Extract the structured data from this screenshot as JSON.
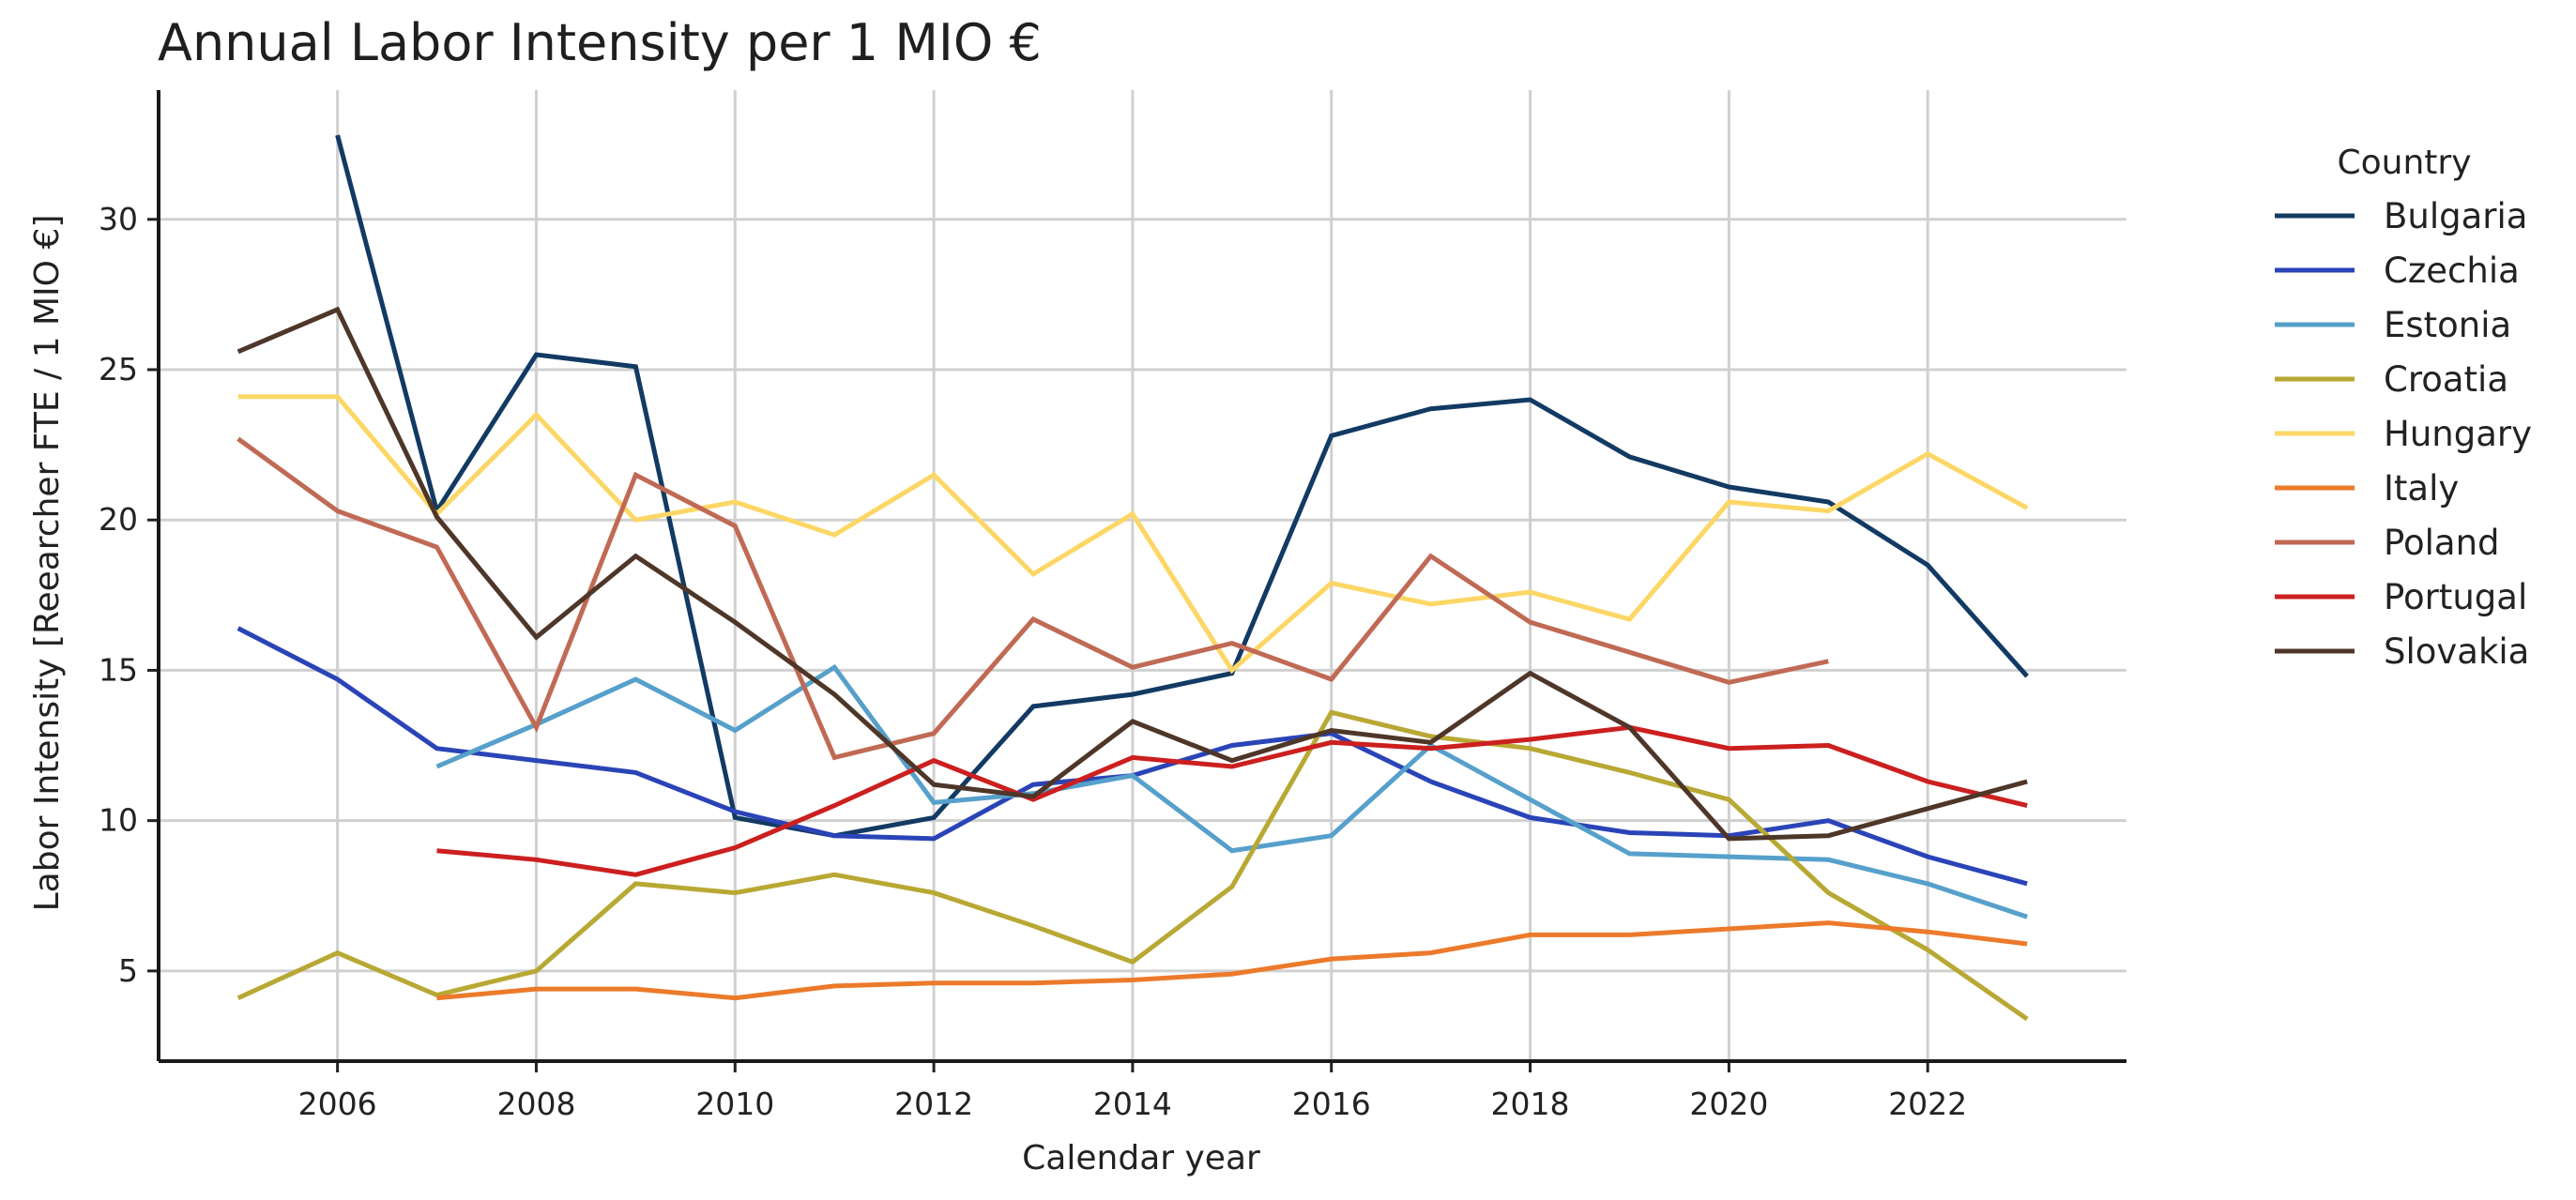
{
  "chart_data": {
    "type": "line",
    "title": "Annual Labor Intensity per 1 MIO €",
    "xlabel": "Calendar year",
    "ylabel": "Labor Intensity [Reearcher FTE / 1 MIO €]",
    "xlim": [
      2004.2,
      2024.0
    ],
    "ylim": [
      2.0,
      34.3
    ],
    "x_ticks": [
      2006,
      2008,
      2010,
      2012,
      2014,
      2016,
      2018,
      2020,
      2022
    ],
    "y_ticks": [
      5,
      10,
      15,
      20,
      25,
      30
    ],
    "grid": true,
    "legend": {
      "title": "Country",
      "position": "right"
    },
    "series": [
      {
        "name": "Bulgaria",
        "color": "#123a63",
        "x": [
          2006,
          2007,
          2008,
          2009,
          2010,
          2011,
          2012,
          2013,
          2014,
          2015,
          2016,
          2017,
          2018,
          2019,
          2020,
          2021,
          2022,
          2023
        ],
        "y": [
          32.8,
          20.3,
          25.5,
          25.1,
          10.1,
          9.5,
          10.1,
          13.8,
          14.2,
          14.9,
          22.8,
          23.7,
          24.0,
          22.1,
          21.1,
          20.6,
          18.5,
          14.8
        ]
      },
      {
        "name": "Czechia",
        "color": "#2a44b8",
        "x": [
          2005,
          2006,
          2007,
          2008,
          2009,
          2010,
          2011,
          2012,
          2013,
          2014,
          2015,
          2016,
          2017,
          2018,
          2019,
          2020,
          2021,
          2022,
          2023
        ],
        "y": [
          16.4,
          14.7,
          12.4,
          12.0,
          11.6,
          10.3,
          9.5,
          9.4,
          11.2,
          11.5,
          12.5,
          12.9,
          11.3,
          10.1,
          9.6,
          9.5,
          10.0,
          8.8,
          7.9
        ]
      },
      {
        "name": "Estonia",
        "color": "#56a0cb",
        "x": [
          2007,
          2008,
          2009,
          2010,
          2011,
          2012,
          2013,
          2014,
          2015,
          2016,
          2017,
          2018,
          2019,
          2020,
          2021,
          2022,
          2023
        ],
        "y": [
          11.8,
          13.2,
          14.7,
          13.0,
          15.1,
          10.6,
          10.9,
          11.5,
          9.0,
          9.5,
          12.5,
          10.7,
          8.9,
          8.8,
          8.7,
          7.9,
          6.8
        ]
      },
      {
        "name": "Croatia",
        "color": "#b8a834",
        "x": [
          2005,
          2006,
          2007,
          2008,
          2009,
          2010,
          2011,
          2012,
          2013,
          2014,
          2015,
          2016,
          2017,
          2018,
          2019,
          2020,
          2021,
          2022,
          2023
        ],
        "y": [
          4.1,
          5.6,
          4.2,
          5.0,
          7.9,
          7.6,
          8.2,
          7.6,
          6.5,
          5.3,
          7.8,
          13.6,
          12.8,
          12.4,
          11.6,
          10.7,
          7.6,
          5.7,
          3.4
        ]
      },
      {
        "name": "Hungary",
        "color": "#fcd766",
        "x": [
          2005,
          2006,
          2007,
          2008,
          2009,
          2010,
          2011,
          2012,
          2013,
          2014,
          2015,
          2016,
          2017,
          2018,
          2019,
          2020,
          2021,
          2022,
          2023
        ],
        "y": [
          24.1,
          24.1,
          20.2,
          23.5,
          20.0,
          20.6,
          19.5,
          21.5,
          18.2,
          20.2,
          15.0,
          17.9,
          17.2,
          17.6,
          16.7,
          20.6,
          20.3,
          22.2,
          20.4
        ]
      },
      {
        "name": "Italy",
        "color": "#ec7a2b",
        "x": [
          2007,
          2008,
          2009,
          2010,
          2011,
          2012,
          2013,
          2014,
          2015,
          2016,
          2017,
          2018,
          2019,
          2020,
          2021,
          2022,
          2023
        ],
        "y": [
          4.1,
          4.4,
          4.4,
          4.1,
          4.5,
          4.6,
          4.6,
          4.7,
          4.9,
          5.4,
          5.6,
          6.2,
          6.2,
          6.4,
          6.6,
          6.3,
          5.9
        ]
      },
      {
        "name": "Poland",
        "color": "#c06a55",
        "x": [
          2005,
          2006,
          2007,
          2008,
          2009,
          2010,
          2011,
          2012,
          2013,
          2014,
          2015,
          2016,
          2017,
          2018,
          2019,
          2020,
          2021
        ],
        "y": [
          22.7,
          20.3,
          19.1,
          13.1,
          21.5,
          19.8,
          12.1,
          12.9,
          16.7,
          15.1,
          15.9,
          14.7,
          18.8,
          16.6,
          15.6,
          14.6,
          15.3
        ]
      },
      {
        "name": "Portugal",
        "color": "#cc1f1f",
        "x": [
          2007,
          2008,
          2009,
          2010,
          2011,
          2012,
          2013,
          2014,
          2015,
          2016,
          2017,
          2018,
          2019,
          2020,
          2021,
          2022,
          2023
        ],
        "y": [
          9.0,
          8.7,
          8.2,
          9.1,
          10.5,
          12.0,
          10.7,
          12.1,
          11.8,
          12.6,
          12.4,
          12.7,
          13.1,
          12.4,
          12.5,
          11.3,
          10.5
        ]
      },
      {
        "name": "Slovakia",
        "color": "#4e3629",
        "x": [
          2005,
          2006,
          2007,
          2008,
          2009,
          2010,
          2011,
          2012,
          2013,
          2014,
          2015,
          2016,
          2017,
          2018,
          2019,
          2020,
          2021,
          2022,
          2023
        ],
        "y": [
          25.6,
          27.0,
          20.1,
          16.1,
          18.8,
          16.6,
          14.2,
          11.2,
          10.8,
          13.3,
          12.0,
          13.0,
          12.6,
          14.9,
          13.1,
          9.4,
          9.5,
          10.4,
          11.3
        ]
      }
    ]
  }
}
